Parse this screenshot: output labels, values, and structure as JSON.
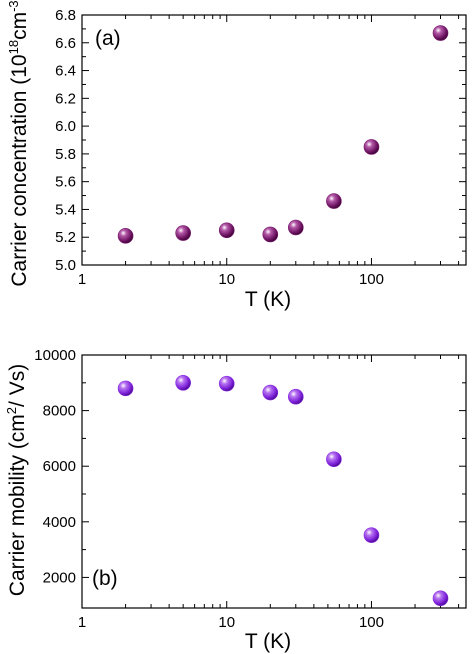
{
  "chart_data": [
    {
      "type": "scatter",
      "panel_label": "(a)",
      "xlabel": "T (K)",
      "ylabel_main": "Carrier concentration (10",
      "ylabel_sup1": "18",
      "ylabel_mid": "cm",
      "ylabel_sup2": "-3",
      "ylabel_end": ")",
      "x_scale": "log",
      "xlim": [
        1,
        450
      ],
      "ylim": [
        5.0,
        6.8
      ],
      "x_ticks": [
        1,
        10,
        100
      ],
      "x_tick_labels": [
        "1",
        "10",
        "100"
      ],
      "y_ticks": [
        5.0,
        5.2,
        5.4,
        5.6,
        5.8,
        6.0,
        6.2,
        6.4,
        6.6,
        6.8
      ],
      "y_tick_labels": [
        "5.0",
        "5.2",
        "5.4",
        "5.6",
        "5.8",
        "6.0",
        "6.2",
        "6.4",
        "6.6",
        "6.8"
      ],
      "marker_color": "#7a1a6e",
      "x": [
        2,
        5,
        10,
        20,
        30,
        55,
        100,
        300
      ],
      "y": [
        5.21,
        5.23,
        5.25,
        5.22,
        5.27,
        5.46,
        5.85,
        6.67
      ]
    },
    {
      "type": "scatter",
      "panel_label": "(b)",
      "xlabel": "T (K)",
      "ylabel_main": "Carrier mobility (cm",
      "ylabel_sup1": "2",
      "ylabel_end": "/ Vs)",
      "x_scale": "log",
      "xlim": [
        1,
        450
      ],
      "ylim": [
        900,
        10000
      ],
      "x_ticks": [
        1,
        10,
        100
      ],
      "x_tick_labels": [
        "1",
        "10",
        "100"
      ],
      "y_ticks": [
        2000,
        4000,
        6000,
        8000,
        10000
      ],
      "y_tick_labels": [
        "2000",
        "4000",
        "6000",
        "8000",
        "10000"
      ],
      "marker_color": "#8a2be2",
      "x": [
        2,
        5,
        10,
        20,
        30,
        55,
        100,
        300
      ],
      "y": [
        8800,
        9000,
        8970,
        8650,
        8500,
        6250,
        3520,
        1250
      ]
    }
  ]
}
